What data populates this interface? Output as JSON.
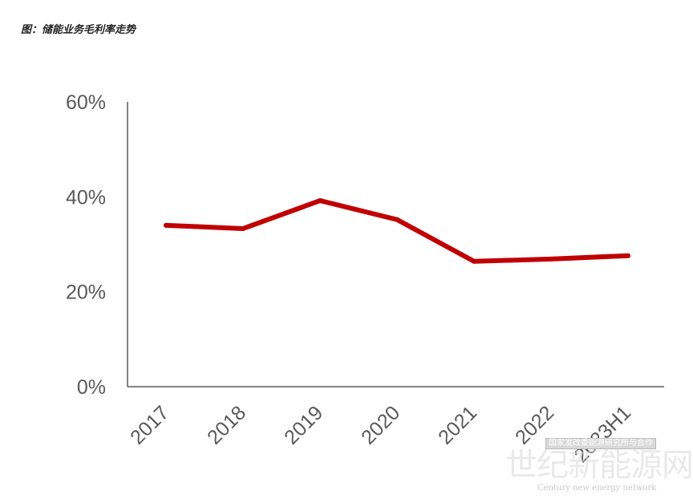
{
  "title": "图：储能业务毛利率走势",
  "colors": {
    "line": "#c00000",
    "axis": "#595959",
    "tick_text": "#595959"
  },
  "watermark": {
    "small_box": "国家发改委能源研究所与合作",
    "cn": "世纪新能源网",
    "en": "Century new energy network"
  },
  "chart_data": {
    "type": "line",
    "title": "图：储能业务毛利率走势",
    "xlabel": "",
    "ylabel": "",
    "categories": [
      "2017",
      "2018",
      "2019",
      "2020",
      "2021",
      "2022",
      "2023H1"
    ],
    "series": [
      {
        "values": [
          34,
          33.3,
          39.2,
          35.2,
          26.4,
          26.9,
          27.6
        ]
      }
    ],
    "ylim": [
      0,
      60
    ],
    "yticks": [
      0,
      20,
      40,
      60
    ],
    "ytick_labels": [
      "0%",
      "20%",
      "40%",
      "60%"
    ],
    "grid": false,
    "legend": "none"
  }
}
